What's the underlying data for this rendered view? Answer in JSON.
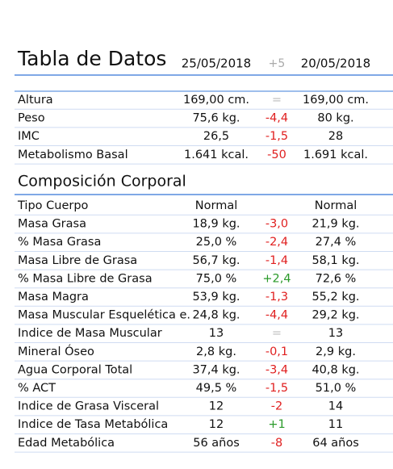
{
  "header": {
    "title": "Tabla de Datos",
    "date_1": "25/05/2018",
    "difference": "+5",
    "date_2": "20/05/2018"
  },
  "sections": [
    {
      "rows": [
        [
          "Altura",
          "169,00 cm.",
          "=",
          "169,00 cm."
        ],
        [
          "Peso",
          "75,6 kg.",
          "-4,4",
          "80 kg."
        ],
        [
          "IMC",
          "26,5",
          "-1,5",
          "28"
        ],
        [
          "Metabolismo Basal",
          "1.641 kcal.",
          "-50",
          "1.691 kcal."
        ]
      ]
    },
    {
      "title": "Composición Corporal",
      "rows": [
        [
          "Tipo Cuerpo",
          "Normal",
          "",
          "Normal"
        ],
        [
          "Masa Grasa",
          "18,9 kg.",
          "-3,0",
          "21,9 kg."
        ],
        [
          "% Masa Grasa",
          "25,0 %",
          "-2,4",
          "27,4 %"
        ],
        [
          "Masa Libre de Grasa",
          "56,7 kg.",
          "-1,4",
          "58,1 kg."
        ],
        [
          "% Masa Libre de Grasa",
          "75,0 %",
          "+2,4",
          "72,6 %"
        ],
        [
          "Masa Magra",
          "53,9 kg.",
          "-1,3",
          "55,2 kg."
        ],
        [
          "Masa Muscular Esquelética e.",
          "24,8 kg.",
          "-4,4",
          "29,2 kg."
        ],
        [
          "Indice de Masa Muscular",
          "13",
          "=",
          "13"
        ],
        [
          "Mineral Óseo",
          "2,8 kg.",
          "-0,1",
          "2,9 kg."
        ],
        [
          "Agua Corporal Total",
          "37,4 kg.",
          "-3,4",
          "40,8 kg."
        ],
        [
          "% ACT",
          "49,5 %",
          "-1,5",
          "51,0 %"
        ],
        [
          "Indice de Grasa Visceral",
          "12",
          "-2",
          "14"
        ],
        [
          "Indice de Tasa Metabólica",
          "12",
          "+1",
          "11"
        ],
        [
          "Edad Metabólica",
          "56 años",
          "-8",
          "64 años"
        ]
      ]
    }
  ]
}
